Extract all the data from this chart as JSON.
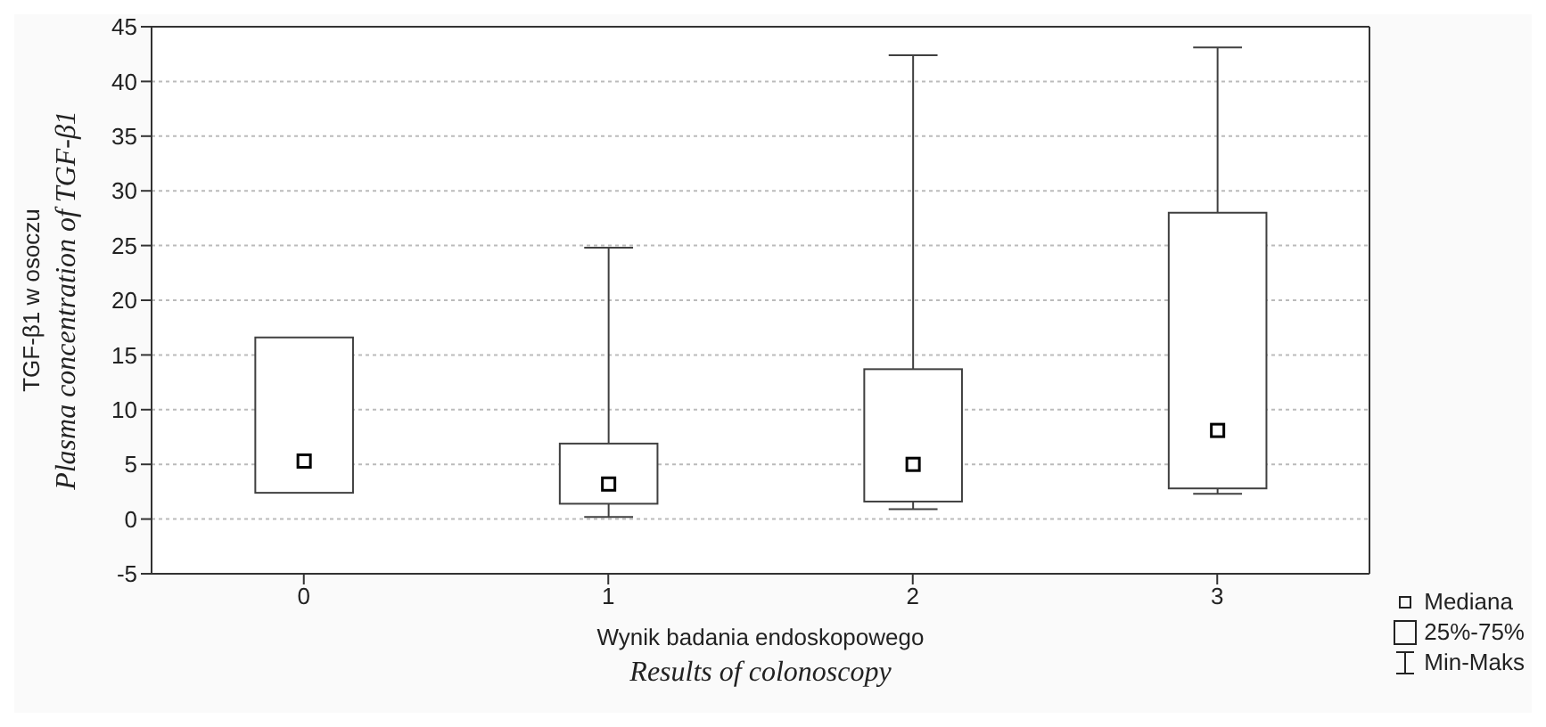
{
  "chart_data": {
    "type": "box",
    "xlabel": "Wynik badania endoskopowego\nResults of colonoscopy",
    "ylabel": "TGF-β1 w osoczu\nPlasma concentration of TGF-β1",
    "categories": [
      "0",
      "1",
      "2",
      "3"
    ],
    "boxes": [
      {
        "low": 2.4,
        "q1": 2.4,
        "median": 5.3,
        "q3": 16.6,
        "high": 16.6
      },
      {
        "low": 0.2,
        "q1": 1.4,
        "median": 3.2,
        "q3": 6.9,
        "high": 24.8
      },
      {
        "low": 0.9,
        "q1": 1.6,
        "median": 5.0,
        "q3": 13.7,
        "high": 42.4
      },
      {
        "low": 2.3,
        "q1": 2.8,
        "median": 8.1,
        "q3": 28.0,
        "high": 43.1
      }
    ],
    "color": "#404040",
    "ylim": [
      -5,
      45
    ],
    "yticks": [
      -5,
      0,
      5,
      10,
      15,
      20,
      25,
      30,
      35,
      40,
      45
    ],
    "grid": "y",
    "annotations": [
      "Mediana",
      "25%-75%",
      "Min-Maks"
    ]
  }
}
